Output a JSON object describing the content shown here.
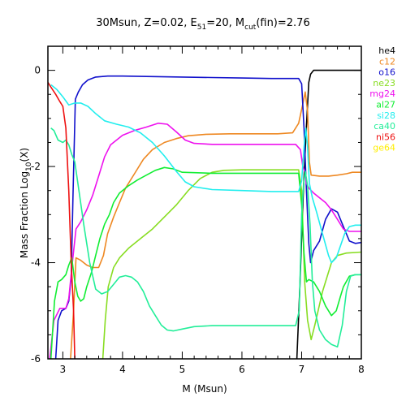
{
  "chart_data": {
    "type": "line",
    "title": {
      "prefix": "30Msun, Z=0.02, E",
      "sub1": "51",
      "mid": "=20, M",
      "sub2": "cut",
      "suffix": "(fin)=2.76"
    },
    "xlabel": "M (Msun)",
    "ylabel": {
      "prefix": "Mass Fraction Log",
      "sub": "10",
      "suffix": "(X)"
    },
    "xlim": [
      2.75,
      8.0
    ],
    "ylim": [
      -6,
      0.5
    ],
    "xticks": [
      3,
      4,
      5,
      6,
      7,
      8
    ],
    "yticks": [
      0,
      -2,
      -4,
      -6
    ],
    "legend_position": "right",
    "series": [
      {
        "name": "he4",
        "color": "#000000",
        "points": [
          [
            6.92,
            -6.0
          ],
          [
            6.97,
            -4.5
          ],
          [
            7.02,
            -2.8
          ],
          [
            7.07,
            -1.4
          ],
          [
            7.12,
            -0.25
          ],
          [
            7.15,
            -0.08
          ],
          [
            7.2,
            0.0
          ],
          [
            7.4,
            0.0
          ],
          [
            7.6,
            0.0
          ],
          [
            7.8,
            0.0
          ],
          [
            8.0,
            0.0
          ]
        ]
      },
      {
        "name": "c12",
        "color": "#ee8822",
        "points": [
          [
            3.13,
            -6.0
          ],
          [
            3.18,
            -5.0
          ],
          [
            3.22,
            -3.9
          ],
          [
            3.3,
            -3.95
          ],
          [
            3.4,
            -4.05
          ],
          [
            3.5,
            -4.1
          ],
          [
            3.6,
            -4.1
          ],
          [
            3.68,
            -3.85
          ],
          [
            3.75,
            -3.4
          ],
          [
            3.85,
            -3.05
          ],
          [
            3.95,
            -2.75
          ],
          [
            4.05,
            -2.45
          ],
          [
            4.2,
            -2.15
          ],
          [
            4.35,
            -1.85
          ],
          [
            4.5,
            -1.65
          ],
          [
            4.7,
            -1.5
          ],
          [
            4.9,
            -1.42
          ],
          [
            5.1,
            -1.36
          ],
          [
            5.4,
            -1.33
          ],
          [
            5.8,
            -1.32
          ],
          [
            6.2,
            -1.32
          ],
          [
            6.6,
            -1.32
          ],
          [
            6.85,
            -1.3
          ],
          [
            6.95,
            -1.1
          ],
          [
            7.02,
            -0.7
          ],
          [
            7.06,
            -0.45
          ],
          [
            7.1,
            -0.85
          ],
          [
            7.13,
            -1.9
          ],
          [
            7.16,
            -2.18
          ],
          [
            7.3,
            -2.2
          ],
          [
            7.45,
            -2.2
          ],
          [
            7.6,
            -2.18
          ],
          [
            7.75,
            -2.15
          ],
          [
            7.85,
            -2.12
          ],
          [
            8.0,
            -2.12
          ]
        ]
      },
      {
        "name": "o16",
        "color": "#1111cc",
        "points": [
          [
            2.88,
            -6.0
          ],
          [
            2.92,
            -5.2
          ],
          [
            2.98,
            -5.0
          ],
          [
            3.05,
            -4.95
          ],
          [
            3.1,
            -4.8
          ],
          [
            3.14,
            -4.3
          ],
          [
            3.17,
            -2.6
          ],
          [
            3.21,
            -0.6
          ],
          [
            3.26,
            -0.45
          ],
          [
            3.33,
            -0.3
          ],
          [
            3.42,
            -0.2
          ],
          [
            3.55,
            -0.14
          ],
          [
            3.75,
            -0.12
          ],
          [
            4.0,
            -0.12
          ],
          [
            4.5,
            -0.13
          ],
          [
            5.0,
            -0.14
          ],
          [
            5.5,
            -0.15
          ],
          [
            6.0,
            -0.16
          ],
          [
            6.5,
            -0.17
          ],
          [
            6.95,
            -0.17
          ],
          [
            7.0,
            -0.28
          ],
          [
            7.04,
            -1.2
          ],
          [
            7.08,
            -2.5
          ],
          [
            7.12,
            -3.6
          ],
          [
            7.15,
            -4.0
          ],
          [
            7.2,
            -3.75
          ],
          [
            7.3,
            -3.55
          ],
          [
            7.4,
            -3.1
          ],
          [
            7.5,
            -2.88
          ],
          [
            7.6,
            -2.95
          ],
          [
            7.7,
            -3.25
          ],
          [
            7.8,
            -3.55
          ],
          [
            7.9,
            -3.6
          ],
          [
            8.0,
            -3.58
          ]
        ]
      },
      {
        "name": "ne23",
        "color": "#88dd22",
        "points": [
          [
            3.67,
            -6.0
          ],
          [
            3.71,
            -5.2
          ],
          [
            3.76,
            -4.5
          ],
          [
            3.85,
            -4.1
          ],
          [
            3.95,
            -3.9
          ],
          [
            4.1,
            -3.7
          ],
          [
            4.3,
            -3.5
          ],
          [
            4.5,
            -3.3
          ],
          [
            4.7,
            -3.05
          ],
          [
            4.9,
            -2.8
          ],
          [
            5.1,
            -2.5
          ],
          [
            5.3,
            -2.25
          ],
          [
            5.5,
            -2.12
          ],
          [
            5.7,
            -2.08
          ],
          [
            6.0,
            -2.07
          ],
          [
            6.5,
            -2.07
          ],
          [
            6.95,
            -2.07
          ],
          [
            7.0,
            -2.5
          ],
          [
            7.05,
            -4.4
          ],
          [
            7.1,
            -5.2
          ],
          [
            7.16,
            -5.6
          ],
          [
            7.22,
            -5.3
          ],
          [
            7.35,
            -4.6
          ],
          [
            7.5,
            -4.0
          ],
          [
            7.6,
            -3.85
          ],
          [
            7.75,
            -3.8
          ],
          [
            8.0,
            -3.78
          ]
        ]
      },
      {
        "name": "mg24",
        "color": "#ee11ee",
        "points": [
          [
            2.78,
            -6.0
          ],
          [
            2.85,
            -5.2
          ],
          [
            2.95,
            -4.95
          ],
          [
            3.05,
            -4.95
          ],
          [
            3.1,
            -4.75
          ],
          [
            3.16,
            -4.0
          ],
          [
            3.22,
            -3.3
          ],
          [
            3.3,
            -3.15
          ],
          [
            3.4,
            -2.9
          ],
          [
            3.5,
            -2.6
          ],
          [
            3.6,
            -2.2
          ],
          [
            3.7,
            -1.8
          ],
          [
            3.8,
            -1.55
          ],
          [
            4.0,
            -1.35
          ],
          [
            4.2,
            -1.25
          ],
          [
            4.4,
            -1.18
          ],
          [
            4.6,
            -1.1
          ],
          [
            4.75,
            -1.12
          ],
          [
            4.9,
            -1.28
          ],
          [
            5.05,
            -1.45
          ],
          [
            5.2,
            -1.52
          ],
          [
            5.5,
            -1.54
          ],
          [
            6.0,
            -1.54
          ],
          [
            6.5,
            -1.54
          ],
          [
            6.9,
            -1.54
          ],
          [
            6.98,
            -1.65
          ],
          [
            7.02,
            -2.0
          ],
          [
            7.05,
            -2.1
          ],
          [
            7.08,
            -2.35
          ],
          [
            7.12,
            -2.45
          ],
          [
            7.2,
            -2.55
          ],
          [
            7.3,
            -2.65
          ],
          [
            7.4,
            -2.75
          ],
          [
            7.5,
            -2.9
          ],
          [
            7.6,
            -3.1
          ],
          [
            7.7,
            -3.3
          ],
          [
            7.8,
            -3.35
          ],
          [
            7.9,
            -3.35
          ],
          [
            8.0,
            -3.35
          ]
        ]
      },
      {
        "name": "al27",
        "color": "#11ee33",
        "points": [
          [
            2.8,
            -6.0
          ],
          [
            2.86,
            -4.8
          ],
          [
            2.92,
            -4.4
          ],
          [
            2.98,
            -4.35
          ],
          [
            3.05,
            -4.25
          ],
          [
            3.1,
            -4.05
          ],
          [
            3.15,
            -3.9
          ],
          [
            3.2,
            -4.4
          ],
          [
            3.25,
            -4.7
          ],
          [
            3.3,
            -4.8
          ],
          [
            3.35,
            -4.75
          ],
          [
            3.4,
            -4.5
          ],
          [
            3.48,
            -4.2
          ],
          [
            3.55,
            -3.85
          ],
          [
            3.62,
            -3.5
          ],
          [
            3.7,
            -3.2
          ],
          [
            3.78,
            -3.0
          ],
          [
            3.85,
            -2.75
          ],
          [
            3.95,
            -2.55
          ],
          [
            4.1,
            -2.4
          ],
          [
            4.25,
            -2.28
          ],
          [
            4.4,
            -2.18
          ],
          [
            4.55,
            -2.08
          ],
          [
            4.7,
            -2.02
          ],
          [
            4.85,
            -2.05
          ],
          [
            5.0,
            -2.12
          ],
          [
            5.5,
            -2.14
          ],
          [
            6.0,
            -2.14
          ],
          [
            6.5,
            -2.14
          ],
          [
            6.95,
            -2.14
          ],
          [
            7.0,
            -2.8
          ],
          [
            7.04,
            -3.8
          ],
          [
            7.08,
            -4.4
          ],
          [
            7.12,
            -4.35
          ],
          [
            7.2,
            -4.4
          ],
          [
            7.3,
            -4.6
          ],
          [
            7.4,
            -4.9
          ],
          [
            7.5,
            -5.1
          ],
          [
            7.58,
            -5.0
          ],
          [
            7.65,
            -4.7
          ],
          [
            7.7,
            -4.5
          ],
          [
            7.8,
            -4.28
          ],
          [
            7.9,
            -4.25
          ],
          [
            8.0,
            -4.25
          ]
        ]
      },
      {
        "name": "si28",
        "color": "#22eeee",
        "points": [
          [
            2.8,
            -0.3
          ],
          [
            2.9,
            -0.4
          ],
          [
            3.0,
            -0.55
          ],
          [
            3.1,
            -0.72
          ],
          [
            3.2,
            -0.68
          ],
          [
            3.3,
            -0.68
          ],
          [
            3.42,
            -0.75
          ],
          [
            3.55,
            -0.9
          ],
          [
            3.7,
            -1.05
          ],
          [
            3.9,
            -1.12
          ],
          [
            4.1,
            -1.18
          ],
          [
            4.3,
            -1.3
          ],
          [
            4.5,
            -1.5
          ],
          [
            4.7,
            -1.78
          ],
          [
            4.9,
            -2.1
          ],
          [
            5.05,
            -2.32
          ],
          [
            5.2,
            -2.42
          ],
          [
            5.5,
            -2.48
          ],
          [
            6.0,
            -2.5
          ],
          [
            6.5,
            -2.52
          ],
          [
            6.95,
            -2.52
          ],
          [
            7.0,
            -2.3
          ],
          [
            7.04,
            -1.6
          ],
          [
            7.07,
            -1.2
          ],
          [
            7.1,
            -1.6
          ],
          [
            7.13,
            -2.35
          ],
          [
            7.18,
            -2.65
          ],
          [
            7.25,
            -2.95
          ],
          [
            7.35,
            -3.4
          ],
          [
            7.45,
            -3.85
          ],
          [
            7.5,
            -4.0
          ],
          [
            7.58,
            -3.9
          ],
          [
            7.65,
            -3.65
          ],
          [
            7.72,
            -3.4
          ],
          [
            7.8,
            -3.25
          ],
          [
            7.9,
            -3.22
          ],
          [
            8.0,
            -3.22
          ]
        ]
      },
      {
        "name": "ca40",
        "color": "#22ee99",
        "points": [
          [
            2.8,
            -1.2
          ],
          [
            2.85,
            -1.25
          ],
          [
            2.92,
            -1.45
          ],
          [
            3.0,
            -1.5
          ],
          [
            3.05,
            -1.45
          ],
          [
            3.1,
            -1.55
          ],
          [
            3.15,
            -1.75
          ],
          [
            3.2,
            -1.9
          ],
          [
            3.27,
            -2.5
          ],
          [
            3.35,
            -3.2
          ],
          [
            3.45,
            -4.0
          ],
          [
            3.55,
            -4.55
          ],
          [
            3.65,
            -4.65
          ],
          [
            3.75,
            -4.6
          ],
          [
            3.85,
            -4.45
          ],
          [
            3.95,
            -4.3
          ],
          [
            4.05,
            -4.27
          ],
          [
            4.15,
            -4.3
          ],
          [
            4.25,
            -4.4
          ],
          [
            4.35,
            -4.6
          ],
          [
            4.45,
            -4.9
          ],
          [
            4.55,
            -5.1
          ],
          [
            4.65,
            -5.3
          ],
          [
            4.75,
            -5.4
          ],
          [
            4.85,
            -5.42
          ],
          [
            5.0,
            -5.38
          ],
          [
            5.2,
            -5.33
          ],
          [
            5.5,
            -5.31
          ],
          [
            6.0,
            -5.31
          ],
          [
            6.5,
            -5.31
          ],
          [
            6.9,
            -5.31
          ],
          [
            6.96,
            -5.0
          ],
          [
            7.0,
            -3.0
          ],
          [
            7.03,
            -2.4
          ],
          [
            7.06,
            -2.1
          ],
          [
            7.1,
            -2.4
          ],
          [
            7.14,
            -3.2
          ],
          [
            7.18,
            -4.4
          ],
          [
            7.22,
            -5.0
          ],
          [
            7.3,
            -5.4
          ],
          [
            7.4,
            -5.6
          ],
          [
            7.5,
            -5.7
          ],
          [
            7.6,
            -5.75
          ],
          [
            7.68,
            -5.3
          ],
          [
            7.75,
            -4.6
          ],
          [
            7.82,
            -4.28
          ],
          [
            7.9,
            -4.25
          ],
          [
            8.0,
            -4.25
          ]
        ]
      },
      {
        "name": "ni56",
        "color": "#ee1111",
        "points": [
          [
            2.75,
            -0.25
          ],
          [
            2.8,
            -0.35
          ],
          [
            2.88,
            -0.5
          ],
          [
            2.95,
            -0.65
          ],
          [
            3.0,
            -0.75
          ],
          [
            3.05,
            -1.2
          ],
          [
            3.1,
            -2.5
          ],
          [
            3.14,
            -4.0
          ],
          [
            3.18,
            -5.0
          ],
          [
            3.2,
            -6.0
          ]
        ]
      },
      {
        "name": "ge64",
        "color": "#ffee00",
        "points": []
      }
    ]
  }
}
